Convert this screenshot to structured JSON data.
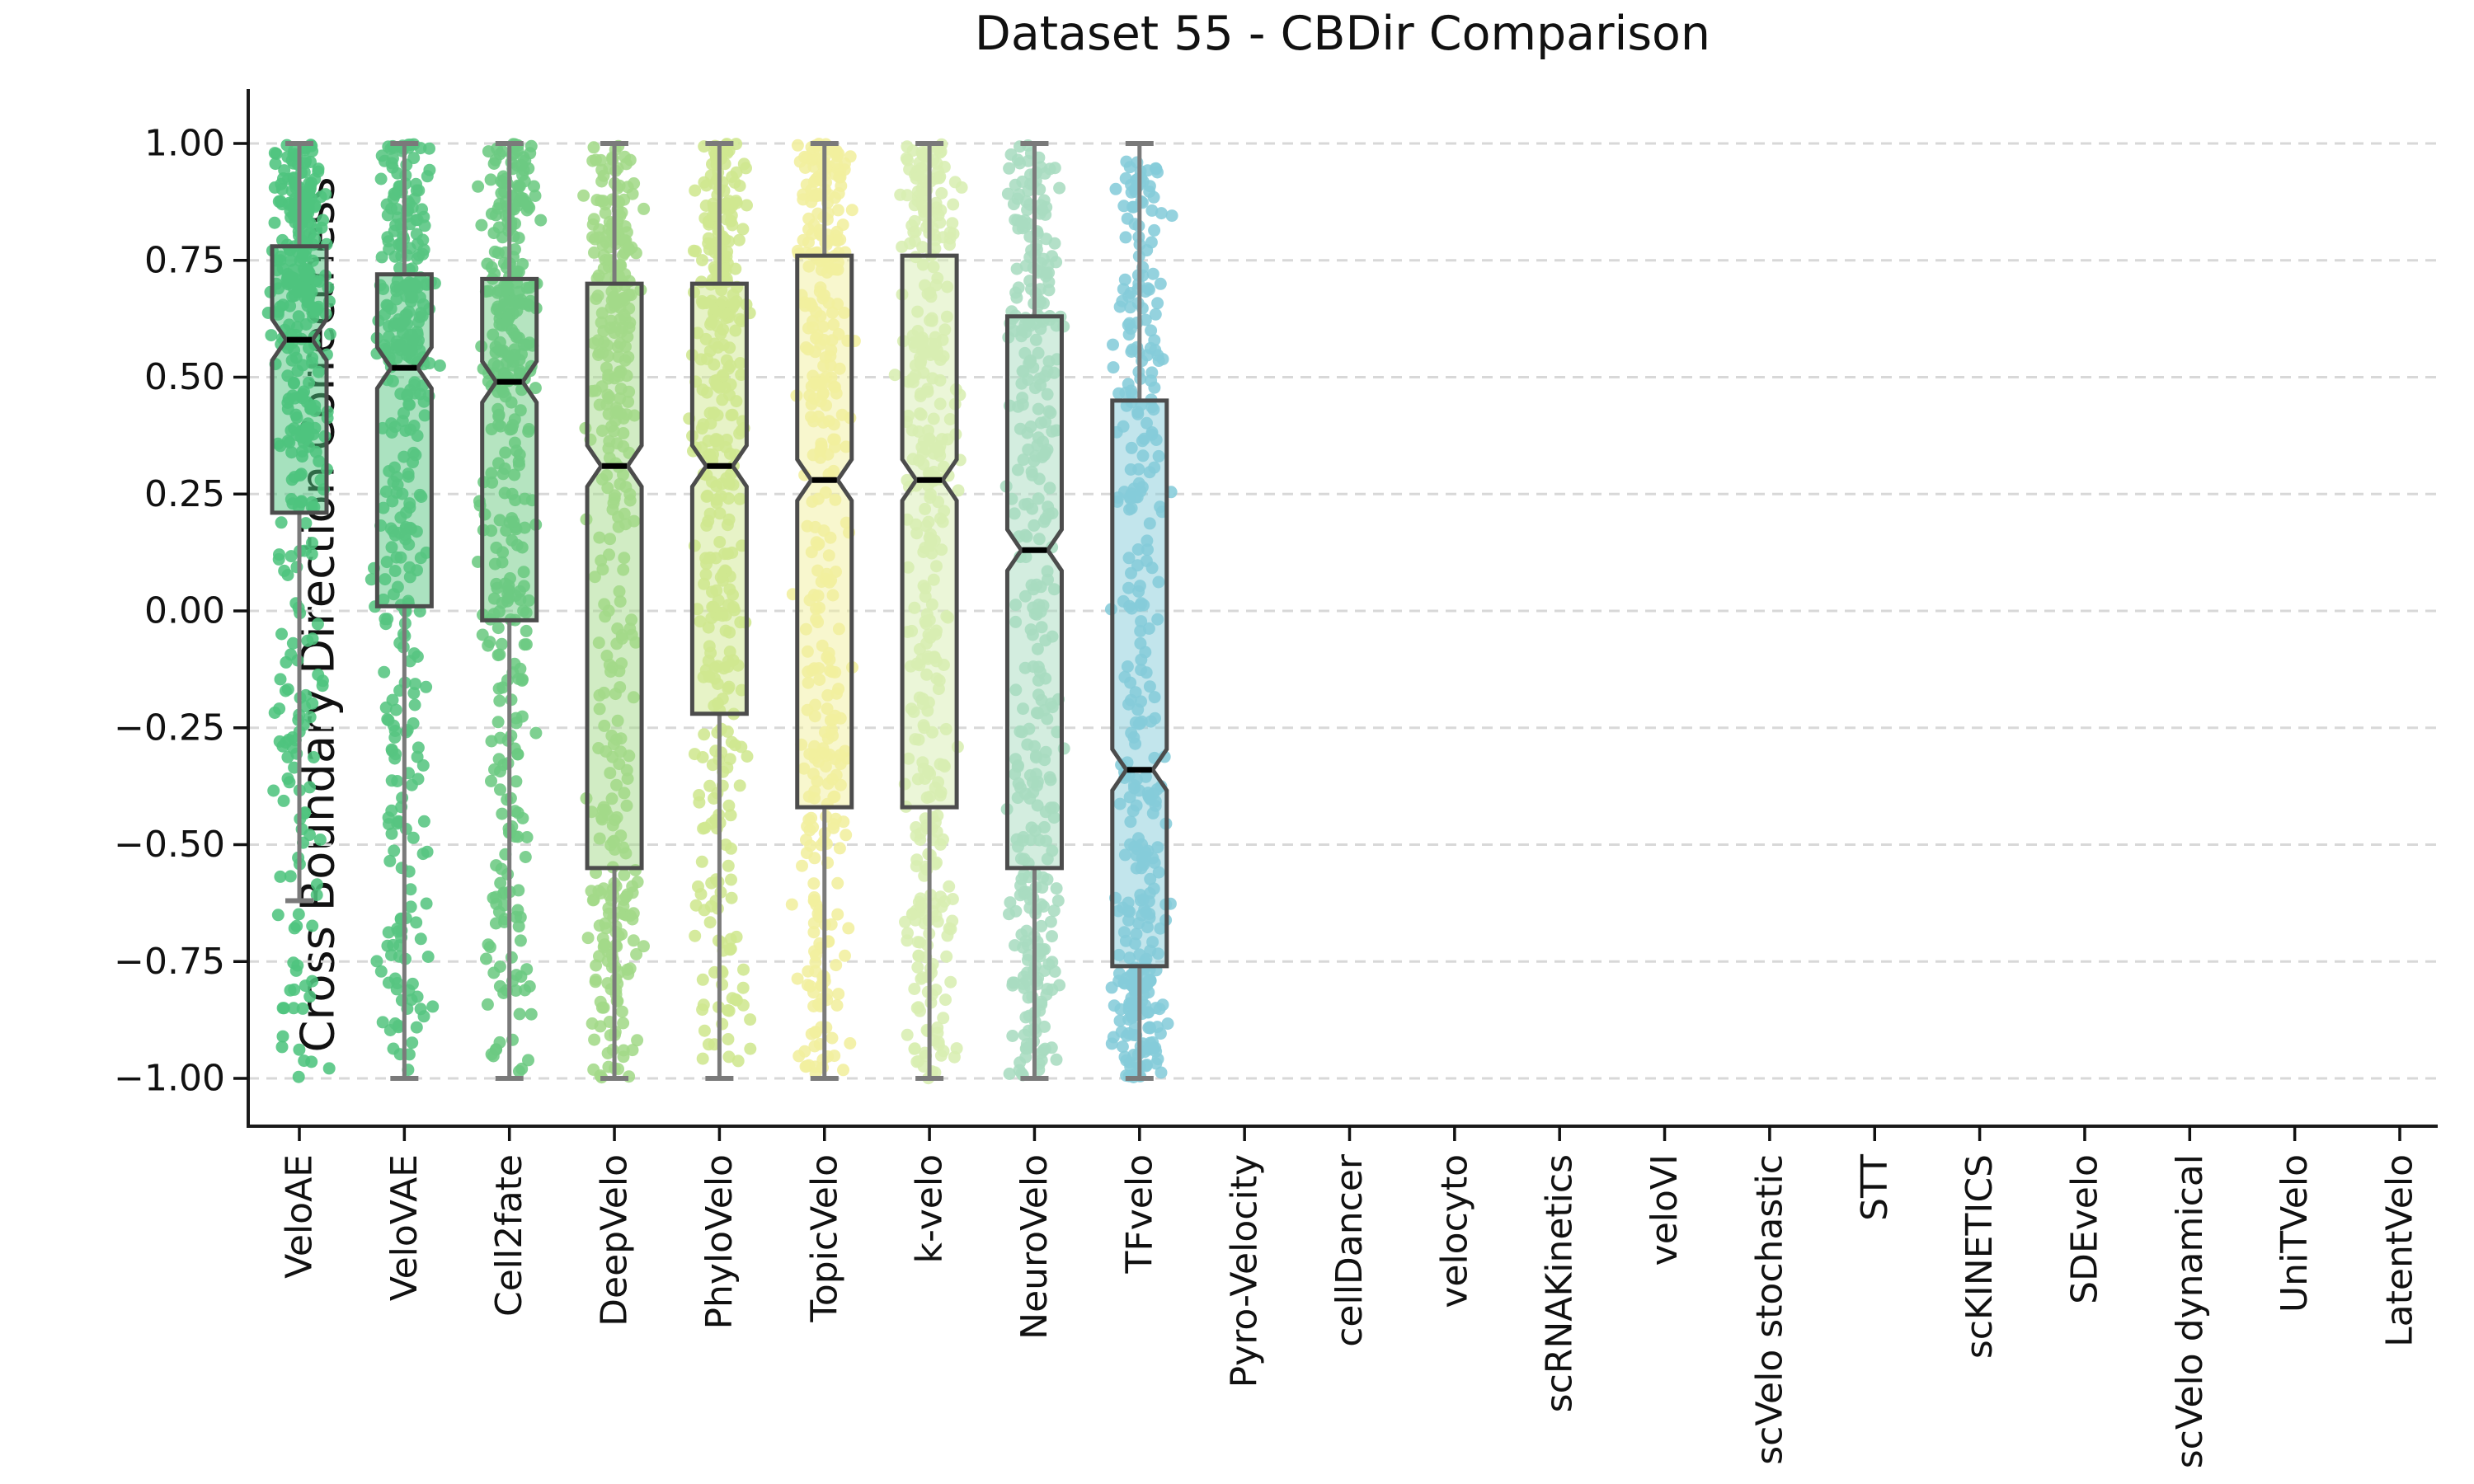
{
  "title": "Dataset 55 - CBDir Comparison",
  "ylabel": "Cross Boundary Direction Correctness",
  "colors": {
    "background": "#ffffff",
    "grid": "#d8d8d8",
    "spine": "#1a1a1a",
    "tick": "#111111",
    "box_edge": "#4c4c4c",
    "whisker": "#7a7a7a",
    "median": "#000000"
  },
  "chart_data": {
    "type": "boxplot",
    "subtype": "notched boxplot with jittered strip points, horizontal dashed grid",
    "title": "Dataset 55 - CBDir Comparison",
    "xlabel": "",
    "ylabel": "Cross Boundary Direction Correctness",
    "ylim": [
      -1.0,
      1.0
    ],
    "grid": "horizontal dashed",
    "legend": "none",
    "y_ticks": [
      {
        "value": 1.0,
        "label": "1.00"
      },
      {
        "value": 0.75,
        "label": "0.75"
      },
      {
        "value": 0.5,
        "label": "0.50"
      },
      {
        "value": 0.25,
        "label": "0.25"
      },
      {
        "value": 0.0,
        "label": "0.00"
      },
      {
        "value": -0.25,
        "label": "−0.25"
      },
      {
        "value": -0.5,
        "label": "−0.50"
      },
      {
        "value": -0.75,
        "label": "−0.75"
      },
      {
        "value": -1.0,
        "label": "−1.00"
      }
    ],
    "categories": [
      {
        "label": "VeloAE",
        "color": "#4ec47e",
        "box": {
          "whislo": -0.62,
          "q1": 0.21,
          "med": 0.58,
          "q3": 0.78,
          "whishi": 1.0
        }
      },
      {
        "label": "VeloVAE",
        "color": "#57c581",
        "box": {
          "whislo": -1.0,
          "q1": 0.01,
          "med": 0.52,
          "q3": 0.72,
          "whishi": 1.0
        }
      },
      {
        "label": "Cell2fate",
        "color": "#6cca82",
        "box": {
          "whislo": -1.0,
          "q1": -0.02,
          "med": 0.49,
          "q3": 0.71,
          "whishi": 1.0
        }
      },
      {
        "label": "DeepVelo",
        "color": "#a3da89",
        "box": {
          "whislo": -1.0,
          "q1": -0.55,
          "med": 0.31,
          "q3": 0.7,
          "whishi": 1.0
        }
      },
      {
        "label": "PhyloVelo",
        "color": "#cfe78f",
        "box": {
          "whislo": -1.0,
          "q1": -0.22,
          "med": 0.31,
          "q3": 0.7,
          "whishi": 1.0
        }
      },
      {
        "label": "TopicVelo",
        "color": "#f1ef9e",
        "box": {
          "whislo": -1.0,
          "q1": -0.42,
          "med": 0.28,
          "q3": 0.76,
          "whishi": 1.0
        }
      },
      {
        "label": "k-velo",
        "color": "#d8eeb2",
        "box": {
          "whislo": -1.0,
          "q1": -0.42,
          "med": 0.28,
          "q3": 0.76,
          "whishi": 1.0
        }
      },
      {
        "label": "NeuroVelo",
        "color": "#a8dcc0",
        "box": {
          "whislo": -1.0,
          "q1": -0.55,
          "med": 0.13,
          "q3": 0.63,
          "whishi": 1.0
        }
      },
      {
        "label": "TFvelo",
        "color": "#85ccd9",
        "box": {
          "whislo": -1.0,
          "q1": -0.76,
          "med": -0.34,
          "q3": 0.45,
          "whishi": 1.0
        }
      },
      {
        "label": "Pyro-Velocity",
        "color": null,
        "box": null
      },
      {
        "label": "cellDancer",
        "color": null,
        "box": null
      },
      {
        "label": "velocyto",
        "color": null,
        "box": null
      },
      {
        "label": "scRNAKinetics",
        "color": null,
        "box": null
      },
      {
        "label": "veloVI",
        "color": null,
        "box": null
      },
      {
        "label": "scVelo stochastic",
        "color": null,
        "box": null
      },
      {
        "label": "STT",
        "color": null,
        "box": null
      },
      {
        "label": "scKINETICS",
        "color": null,
        "box": null
      },
      {
        "label": "SDEvelo",
        "color": null,
        "box": null
      },
      {
        "label": "scVelo dynamical",
        "color": null,
        "box": null
      },
      {
        "label": "UniTVelo",
        "color": null,
        "box": null
      },
      {
        "label": "LatentVelo",
        "color": null,
        "box": null
      }
    ]
  }
}
